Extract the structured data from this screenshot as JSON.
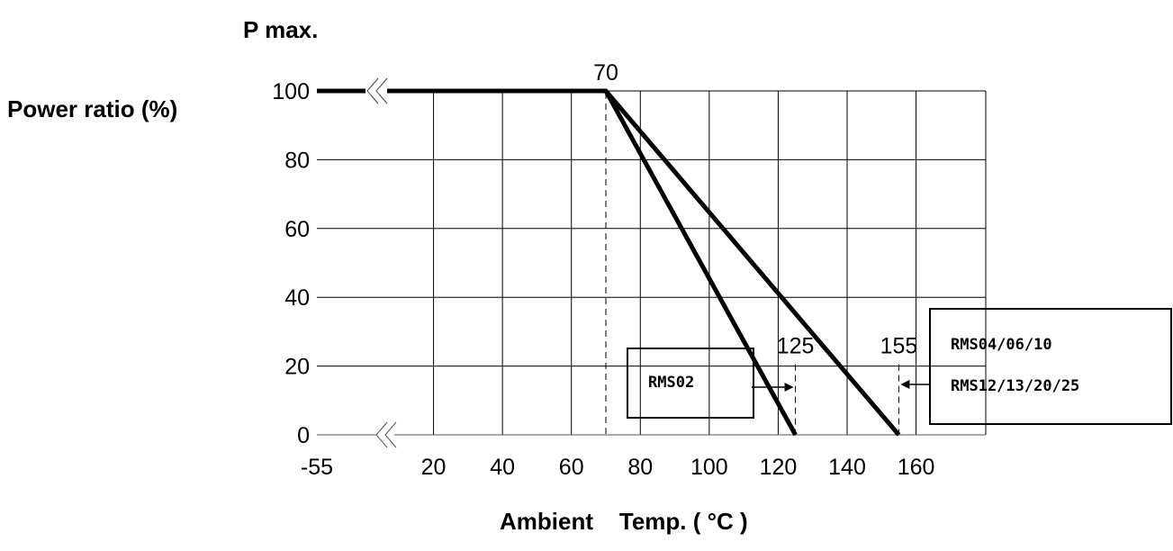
{
  "chart_data": {
    "type": "line",
    "title": "P max.",
    "ylabel": "Power ratio (%)",
    "xlabel": "Ambient    Temp. ( °C )",
    "x_tick_labels": [
      "-55",
      "20",
      "40",
      "60",
      "80",
      "100",
      "120",
      "140",
      "160"
    ],
    "x_ticks": [
      -55,
      20,
      40,
      60,
      80,
      100,
      120,
      140,
      160
    ],
    "y_tick_labels": [
      "0",
      "20",
      "40",
      "60",
      "80",
      "100"
    ],
    "y_ticks": [
      0,
      20,
      40,
      60,
      80,
      100
    ],
    "xlim": [
      -55,
      175
    ],
    "ylim": [
      0,
      100
    ],
    "axis_break_x": true,
    "grid": true,
    "series": [
      {
        "x": [
          -55,
          70,
          125
        ],
        "y": [
          100,
          100,
          0
        ]
      },
      {
        "x": [
          -55,
          70,
          155
        ],
        "y": [
          100,
          100,
          0
        ]
      }
    ],
    "annotations": [
      {
        "text": "70",
        "x": 70,
        "y": 100
      },
      {
        "text": "125",
        "x": 125,
        "y": 20
      },
      {
        "text": "155",
        "x": 155,
        "y": 20
      }
    ],
    "callouts": [
      {
        "lines": [
          "RMS02"
        ],
        "points_to_x": 125
      },
      {
        "lines": [
          "RMS04/06/10",
          "RMS12/13/20/25"
        ],
        "points_to_x": 155
      }
    ]
  }
}
